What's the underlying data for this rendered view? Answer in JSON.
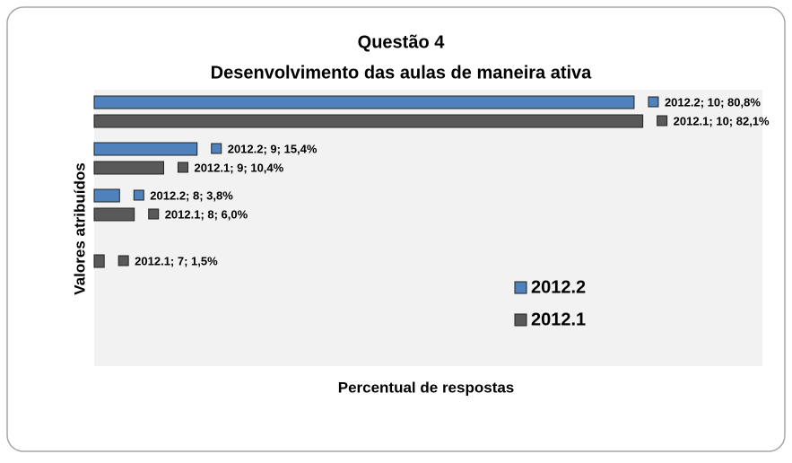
{
  "chart_data": {
    "type": "bar",
    "orientation": "horizontal",
    "title": "Questão 4",
    "subtitle": "Desenvolvimento das aulas de maneira ativa",
    "x_label": "Percentual de respostas",
    "y_label": "Valores atribuídos",
    "categories": [
      null,
      null,
      null,
      null
    ],
    "series": [
      {
        "name": "2012.2",
        "color": "#4f81bd",
        "values": [
          80.8,
          15.4,
          3.8,
          null
        ],
        "value_labels": [
          "2012.2; 10; 80,8%",
          "2012.2; 9; 15,4%",
          "2012.2; 8; 3,8%",
          null
        ]
      },
      {
        "name": "2012.1",
        "color": "#595959",
        "values": [
          82.1,
          10.4,
          6.0,
          1.5
        ],
        "value_labels": [
          "2012.1; 10; 82,1%",
          "2012.1; 9; 10,4%",
          "2012.1; 8; 6,0%",
          "2012.1; 7; 1,5%"
        ]
      }
    ],
    "xlim": [
      0,
      100
    ],
    "legend": "lower right"
  }
}
